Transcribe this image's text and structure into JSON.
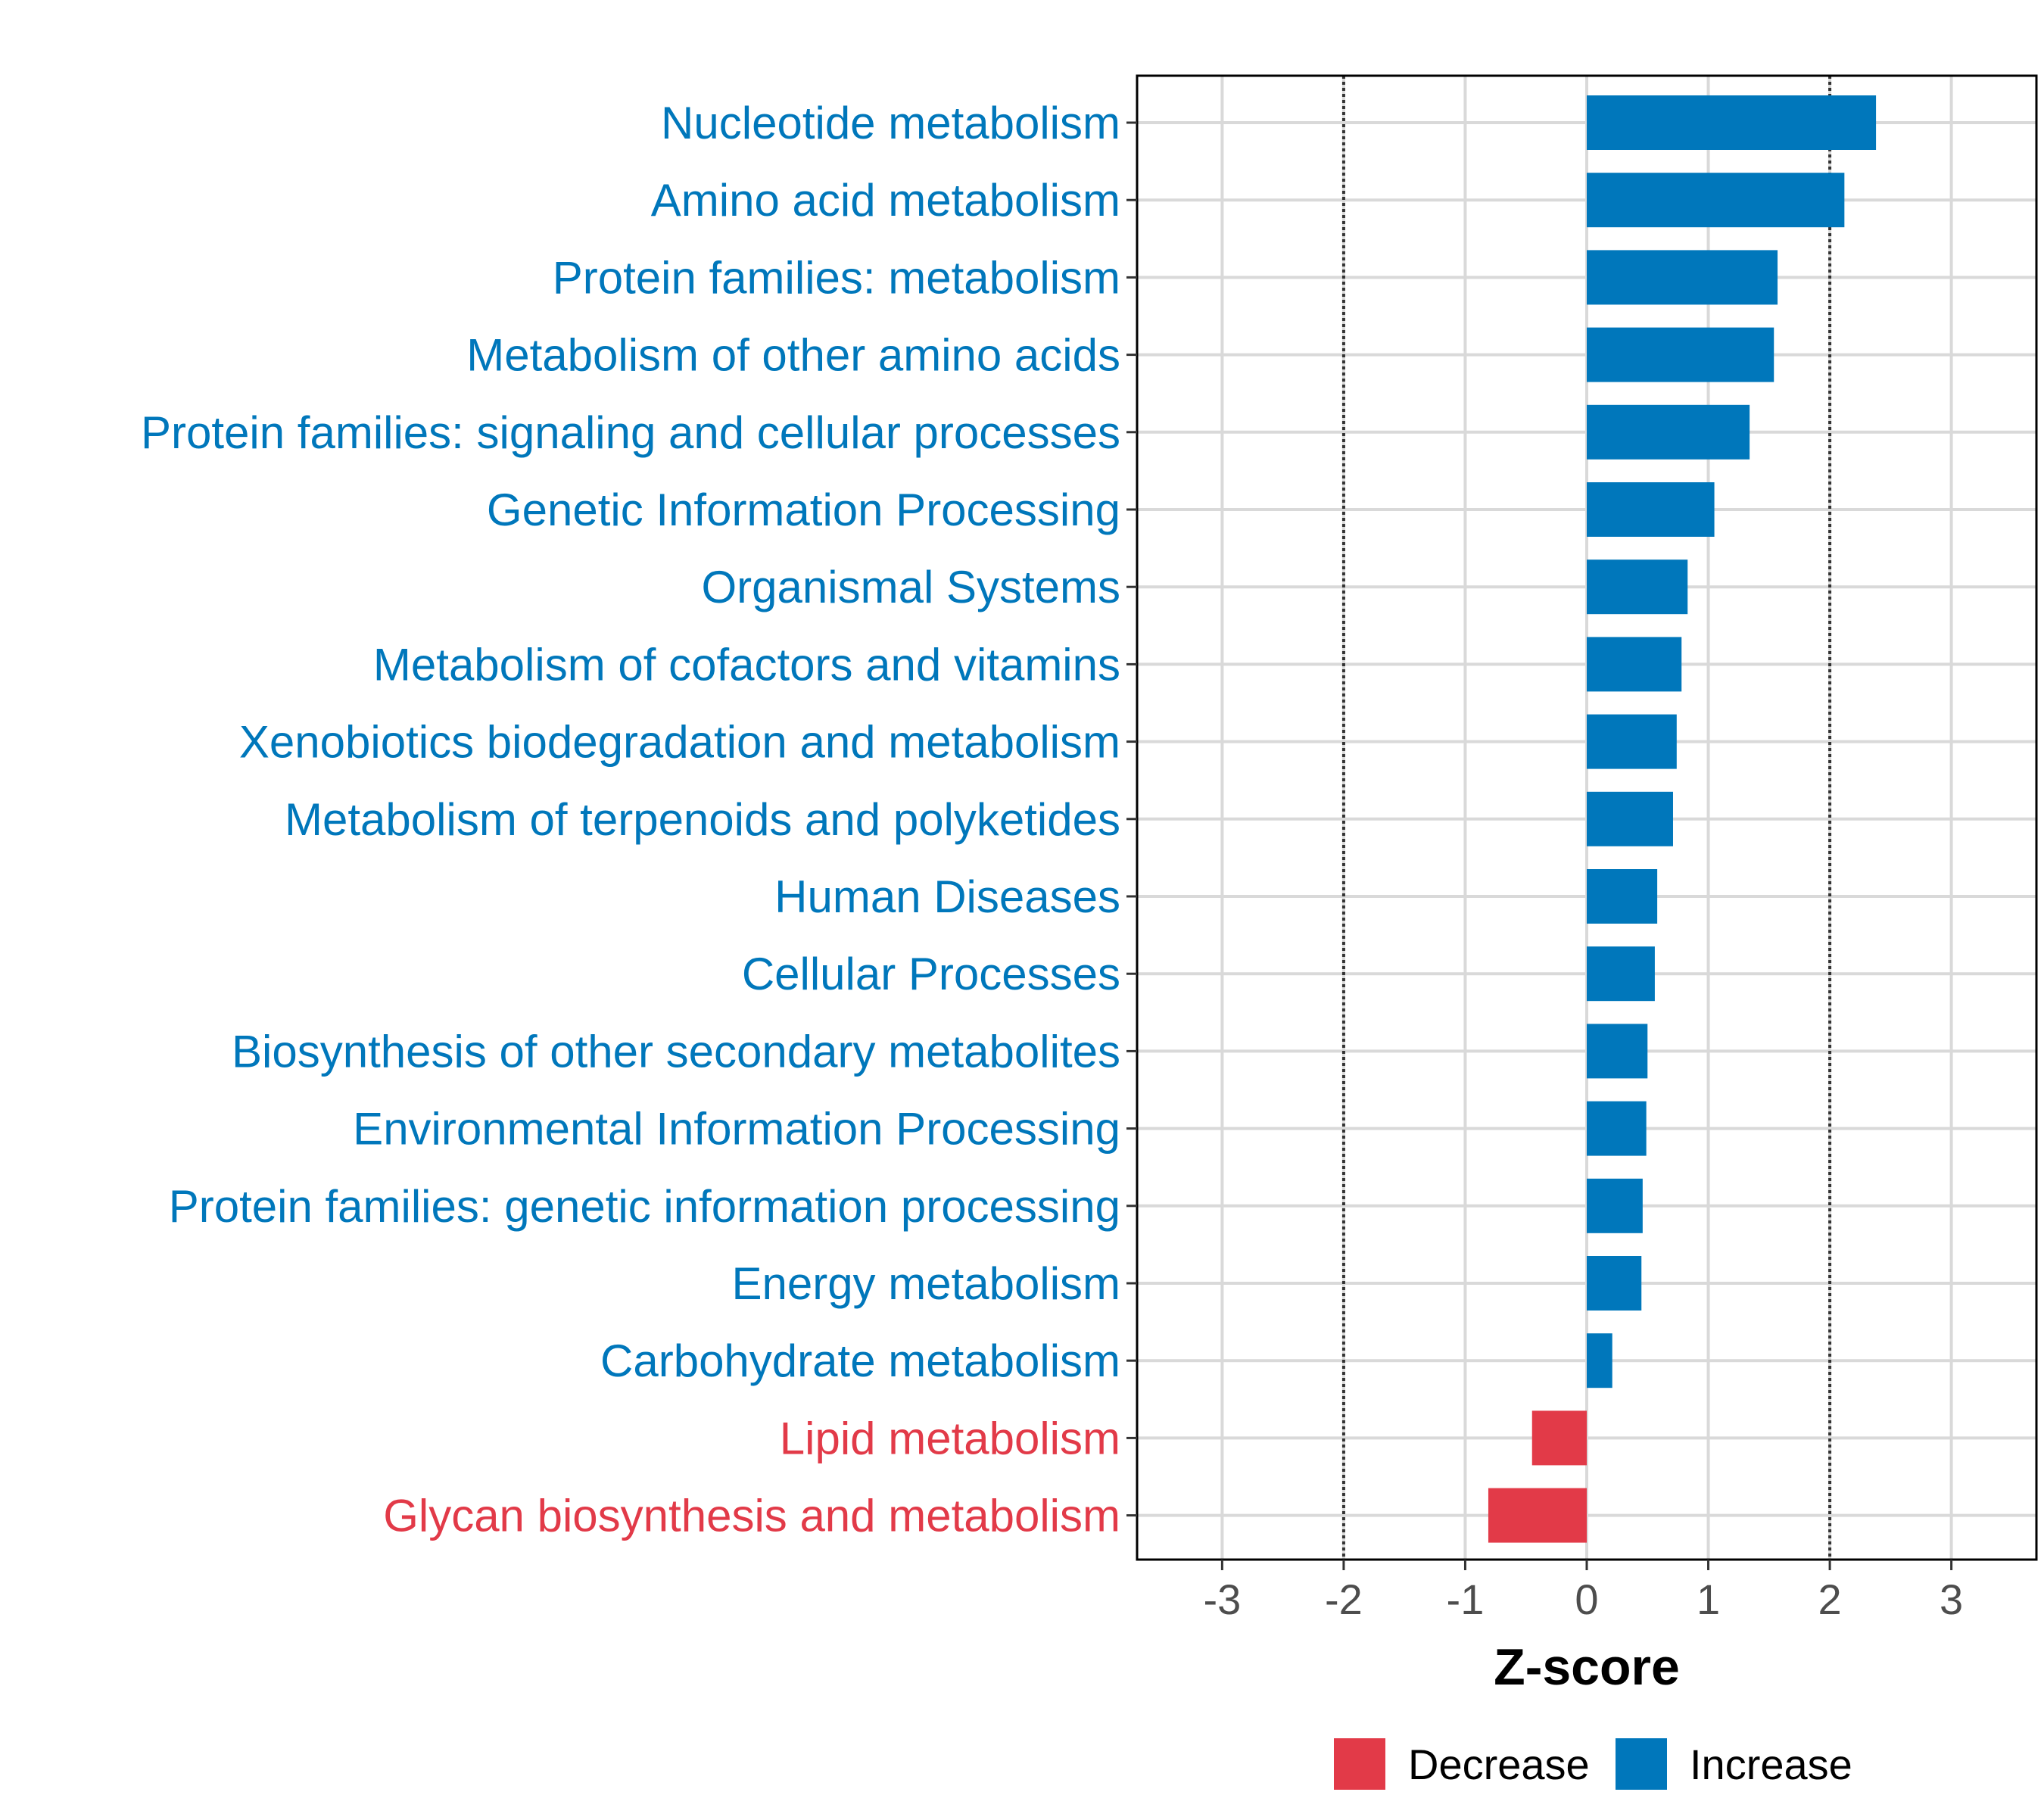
{
  "chart_data": {
    "type": "bar",
    "orientation": "horizontal",
    "xlabel": "Z-score",
    "xlim": [
      -3.7,
      3.7
    ],
    "xticks": [
      -3,
      -2,
      -1,
      0,
      1,
      2,
      3
    ],
    "reference_lines": [
      -2,
      2
    ],
    "grid": true,
    "legend_position": "bottom",
    "legend": [
      {
        "name": "Decrease",
        "color": "#E23A48"
      },
      {
        "name": "Increase",
        "color": "#0077BB"
      }
    ],
    "categories": [
      "Nucleotide metabolism",
      "Amino acid metabolism",
      "Protein families: metabolism",
      "Metabolism of other amino acids",
      "Protein families: signaling and cellular processes",
      "Genetic Information Processing",
      "Organismal Systems",
      "Metabolism of cofactors and vitamins",
      "Xenobiotics biodegradation and metabolism",
      "Metabolism of terpenoids and polyketides",
      "Human Diseases",
      "Cellular Processes",
      "Biosynthesis of other secondary metabolites",
      "Environmental Information Processing",
      "Protein families: genetic information processing",
      "Energy metabolism",
      "Carbohydrate metabolism",
      "Lipid metabolism",
      "Glycan biosynthesis and metabolism"
    ],
    "values": [
      2.38,
      2.12,
      1.57,
      1.54,
      1.34,
      1.05,
      0.83,
      0.78,
      0.74,
      0.71,
      0.58,
      0.56,
      0.5,
      0.49,
      0.46,
      0.45,
      0.21,
      -0.45,
      -0.81
    ],
    "groups": [
      "Increase",
      "Increase",
      "Increase",
      "Increase",
      "Increase",
      "Increase",
      "Increase",
      "Increase",
      "Increase",
      "Increase",
      "Increase",
      "Increase",
      "Increase",
      "Increase",
      "Increase",
      "Increase",
      "Increase",
      "Decrease",
      "Decrease"
    ]
  }
}
